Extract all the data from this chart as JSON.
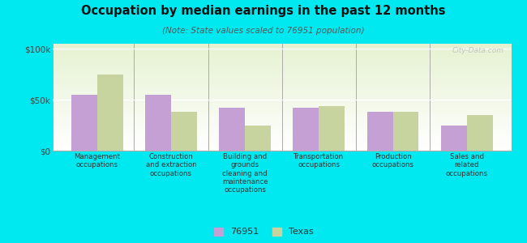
{
  "title": "Occupation by median earnings in the past 12 months",
  "subtitle": "(Note: State values scaled to 76951 population)",
  "categories": [
    "Management\noccupations",
    "Construction\nand extraction\noccupations",
    "Building and\ngrounds\ncleaning and\nmaintenance\noccupations",
    "Transportation\noccupations",
    "Production\noccupations",
    "Sales and\nrelated\noccupations"
  ],
  "values_76951": [
    55000,
    55000,
    42000,
    42000,
    38000,
    25000
  ],
  "values_texas": [
    75000,
    38000,
    25000,
    44000,
    38000,
    35000
  ],
  "color_76951": "#c4a0d4",
  "color_texas": "#c8d4a0",
  "yticks": [
    0,
    50000,
    100000
  ],
  "ytick_labels": [
    "$0",
    "$50k",
    "$100k"
  ],
  "ylim": [
    0,
    105000
  ],
  "outer_bg": "#00e8f0",
  "watermark": "City-Data.com",
  "legend_76951": "76951",
  "legend_texas": "Texas",
  "bar_width": 0.35
}
